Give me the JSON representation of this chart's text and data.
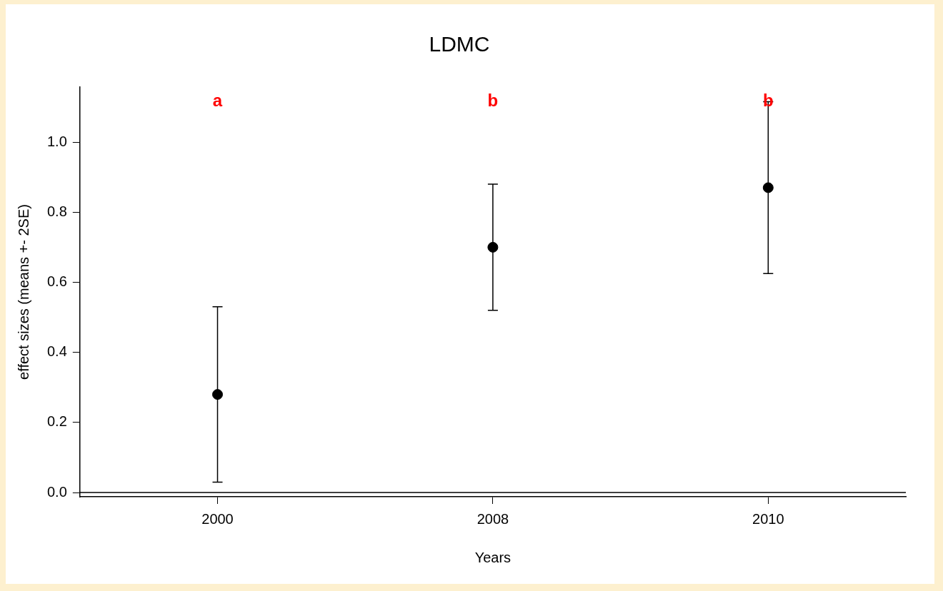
{
  "chart_data": {
    "type": "scatter",
    "title": "LDMC",
    "xlabel": "Years",
    "ylabel": "effect sizes (means +- 2SE)",
    "categories": [
      "2000",
      "2008",
      "2010"
    ],
    "values": [
      0.28,
      0.7,
      0.87
    ],
    "errors": [
      0.25,
      0.18,
      0.245
    ],
    "color": "#000000",
    "marker": "circle",
    "ylim": [
      -0.012,
      1.157
    ],
    "yticks": [
      {
        "value": 0,
        "label": "0.0"
      },
      0.2,
      0.4,
      0.6,
      0.8,
      {
        "value": 1,
        "label": "1.0"
      }
    ],
    "ref_lines": [
      {
        "axis": "y",
        "value": 0,
        "color": "#000000"
      }
    ],
    "annotations": [
      "a",
      "b",
      "b"
    ]
  }
}
